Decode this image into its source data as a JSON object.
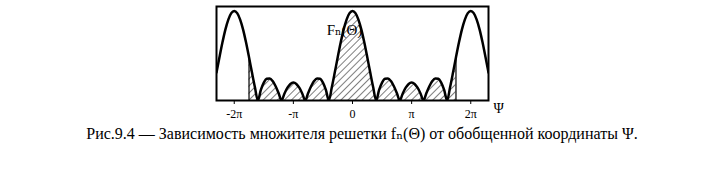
{
  "chart_data": {
    "type": "line",
    "ylabel": "Fₙ(Θ)",
    "xlabel": "Ψ",
    "caption": "Рис.9.4 — Зависимость множителя решетки fₙ(Θ) от обобщенной координаты Ψ.",
    "x": [
      -2.3,
      -2.25,
      -2.2,
      -2.15,
      -2.1,
      -2.05,
      -2,
      -1.95,
      -1.9,
      -1.85,
      -1.8,
      -1.75,
      -1.7,
      -1.65,
      -1.6,
      -1.55,
      -1.5,
      -1.45,
      -1.4,
      -1.35,
      -1.3,
      -1.25,
      -1.2,
      -1.15,
      -1.1,
      -1.05,
      -1,
      -0.95,
      -0.9,
      -0.85,
      -0.8,
      -0.75,
      -0.7,
      -0.65,
      -0.6,
      -0.55,
      -0.5,
      -0.45,
      -0.4,
      -0.35,
      -0.3,
      -0.25,
      -0.2,
      -0.15,
      -0.1,
      -0.05,
      0,
      0.05,
      0.1,
      0.15,
      0.2,
      0.25,
      0.3,
      0.35,
      0.4,
      0.45,
      0.5,
      0.55,
      0.6,
      0.65,
      0.7,
      0.75,
      0.8,
      0.85,
      0.9,
      0.95,
      1,
      1.05,
      1.1,
      1.15,
      1.2,
      1.25,
      1.3,
      1.35,
      1.4,
      1.45,
      1.5,
      1.55,
      1.6,
      1.65,
      1.7,
      1.75,
      1.8,
      1.85,
      1.9,
      1.95,
      2,
      2.05,
      2.1,
      2.15,
      2.2,
      2.25,
      2.3
    ],
    "values": [
      0.312,
      0.483,
      0.647,
      0.792,
      0.904,
      0.976,
      1,
      0.976,
      0.904,
      0.792,
      0.647,
      0.483,
      0.312,
      0.147,
      0,
      0.118,
      0.2,
      0.243,
      0.247,
      0.217,
      0.159,
      0.083,
      0,
      0.079,
      0.143,
      0.185,
      0.2,
      0.185,
      0.143,
      0.079,
      0,
      0.083,
      0.159,
      0.217,
      0.247,
      0.243,
      0.2,
      0.118,
      0,
      0.147,
      0.312,
      0.483,
      0.647,
      0.792,
      0.904,
      0.976,
      1,
      0.976,
      0.904,
      0.792,
      0.647,
      0.483,
      0.312,
      0.147,
      0,
      0.118,
      0.2,
      0.243,
      0.247,
      0.217,
      0.159,
      0.083,
      0,
      0.079,
      0.143,
      0.185,
      0.2,
      0.185,
      0.143,
      0.079,
      0,
      0.083,
      0.159,
      0.217,
      0.247,
      0.243,
      0.2,
      0.118,
      0,
      0.147,
      0.312,
      0.483,
      0.647,
      0.792,
      0.904,
      0.976,
      1,
      0.976,
      0.904,
      0.792,
      0.647,
      0.483,
      0.312
    ],
    "xlim": [
      -2.3,
      2.3
    ],
    "ylim": [
      0,
      1.05
    ],
    "xticks": [
      {
        "value": -2,
        "label": "-2π"
      },
      {
        "value": -1,
        "label": "-π"
      },
      0,
      {
        "value": 1,
        "label": "π"
      },
      {
        "value": 2,
        "label": "2π"
      }
    ],
    "hatched_x": [
      -1.75,
      1.75
    ],
    "color": "#000000",
    "tick_labels": "x",
    "grid": false
  }
}
